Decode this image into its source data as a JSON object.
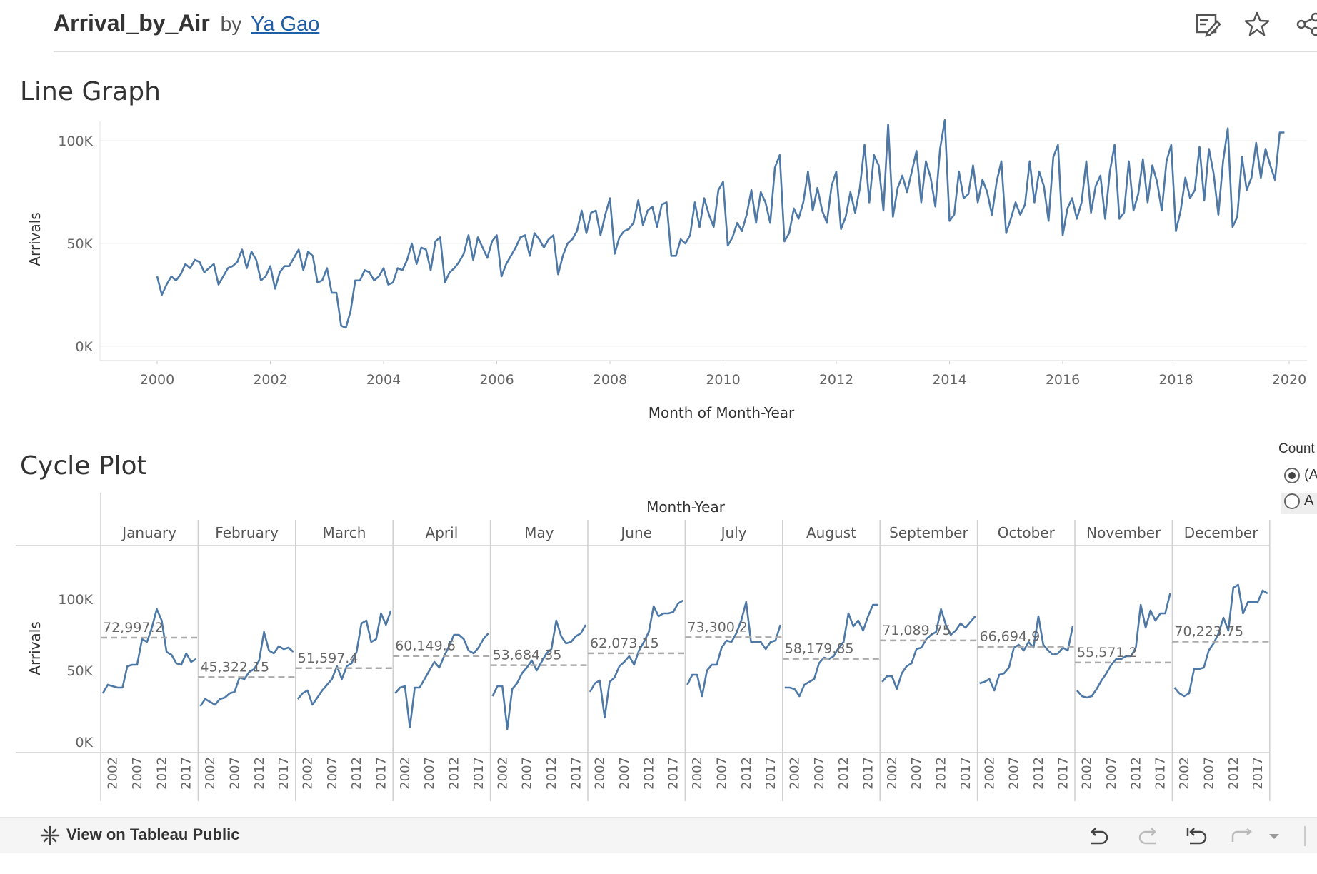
{
  "header": {
    "title": "Arrival_by_Air",
    "by": "by",
    "author": "Ya Gao",
    "icons": [
      "edit-icon",
      "star-icon",
      "share-icon"
    ]
  },
  "filter": {
    "title": "Count",
    "options": [
      {
        "label": "(All)",
        "selected": true
      },
      {
        "label": "A",
        "selected": false
      }
    ]
  },
  "footer": {
    "view_label": "View on Tableau Public",
    "icons": [
      "undo-icon",
      "redo-icon",
      "revert-icon",
      "refresh-icon",
      "dropdown-icon"
    ]
  },
  "chart_data": [
    {
      "type": "line",
      "title": "Line Graph",
      "xlabel": "Month of Month-Year",
      "ylabel": "Arrivals",
      "xlim": [
        1999,
        2020
      ],
      "ylim": [
        0,
        115000
      ],
      "x_ticks": [
        2000,
        2002,
        2004,
        2006,
        2008,
        2010,
        2012,
        2014,
        2016,
        2018,
        2020
      ],
      "y_ticks": [
        {
          "value": 0,
          "label": "0K"
        },
        {
          "value": 50000,
          "label": "50K"
        },
        {
          "value": 100000,
          "label": "100K"
        }
      ],
      "x_start": "2000-01",
      "x_end": "2019-12",
      "grid": true,
      "color": "#4e79a7",
      "values": [
        34000,
        25000,
        30000,
        34000,
        32000,
        35000,
        40000,
        38000,
        42000,
        41000,
        36000,
        38000,
        40000,
        30000,
        34000,
        38000,
        39000,
        41000,
        47000,
        38000,
        46000,
        42000,
        32000,
        34000,
        39000,
        28000,
        36000,
        39000,
        39000,
        43000,
        47000,
        37000,
        46000,
        44000,
        31000,
        32000,
        38000,
        26000,
        26000,
        10000,
        9000,
        17000,
        32000,
        32000,
        37000,
        36000,
        32000,
        34000,
        38000,
        30000,
        31000,
        38000,
        37000,
        42000,
        50000,
        40000,
        48000,
        47000,
        37000,
        51000,
        53000,
        31000,
        36000,
        38000,
        41000,
        45000,
        54000,
        42000,
        53000,
        48000,
        43000,
        51000,
        54000,
        34000,
        40000,
        44000,
        48000,
        53000,
        54000,
        44000,
        55000,
        52000,
        48000,
        52000,
        54000,
        35000,
        44000,
        50000,
        52000,
        56000,
        66000,
        55000,
        65000,
        66000,
        54000,
        64000,
        72000,
        45000,
        53000,
        56000,
        57000,
        60000,
        71000,
        59000,
        66000,
        68000,
        58000,
        69000,
        70000,
        44000,
        44000,
        52000,
        50000,
        54000,
        70000,
        58000,
        72000,
        64000,
        58000,
        76000,
        80000,
        49000,
        53000,
        60000,
        56000,
        64000,
        76000,
        60000,
        75000,
        70000,
        60000,
        87000,
        93000,
        51000,
        55000,
        67000,
        62000,
        70000,
        85000,
        66000,
        77000,
        66000,
        60000,
        78000,
        85000,
        57000,
        63000,
        75000,
        65000,
        77000,
        98000,
        70000,
        93000,
        88000,
        66000,
        108000,
        63000,
        77000,
        83000,
        75000,
        85000,
        95000,
        70000,
        90000,
        82000,
        68000,
        96000,
        110000,
        61000,
        64000,
        85000,
        72000,
        74000,
        88000,
        70000,
        81000,
        75000,
        64000,
        80000,
        90000,
        55000,
        62000,
        70000,
        64000,
        69000,
        90000,
        70000,
        85000,
        78000,
        61000,
        92000,
        98000,
        54000,
        67000,
        72000,
        62000,
        70000,
        90000,
        65000,
        78000,
        83000,
        62000,
        85000,
        98000,
        62000,
        65000,
        90000,
        66000,
        74000,
        91000,
        70000,
        88000,
        80000,
        66000,
        90000,
        98000,
        56000,
        66000,
        82000,
        72000,
        76000,
        97000,
        71000,
        96000,
        84000,
        64000,
        90000,
        106000,
        58000,
        63000,
        92000,
        76000,
        82000,
        99000,
        82000,
        96000,
        88000,
        81000,
        104000,
        104000
      ]
    },
    {
      "type": "line",
      "title": "Cycle Plot",
      "column_header": "Month-Year",
      "ylabel": "Arrivals",
      "ylim": [
        0,
        115000
      ],
      "y_ticks": [
        {
          "value": 0,
          "label": "0K"
        },
        {
          "value": 50000,
          "label": "50K"
        },
        {
          "value": 100000,
          "label": "100K"
        }
      ],
      "x_tick_labels": [
        "2002",
        "2007",
        "2012",
        "2017"
      ],
      "color": "#4e79a7",
      "reference_line_color": "#aaaaaa",
      "panels": [
        {
          "month": "January",
          "average": 72997.2,
          "average_label": "72,997.2"
        },
        {
          "month": "February",
          "average": 45322.15,
          "average_label": "45,322.15"
        },
        {
          "month": "March",
          "average": 51597.4,
          "average_label": "51,597.4"
        },
        {
          "month": "April",
          "average": 60149.6,
          "average_label": "60,149.6"
        },
        {
          "month": "May",
          "average": 53684.35,
          "average_label": "53,684.35"
        },
        {
          "month": "June",
          "average": 62073.15,
          "average_label": "62,073.15"
        },
        {
          "month": "July",
          "average": 73300.2,
          "average_label": "73,300.2"
        },
        {
          "month": "August",
          "average": 58179.85,
          "average_label": "58,179.85"
        },
        {
          "month": "September",
          "average": 71089.75,
          "average_label": "71,089.75"
        },
        {
          "month": "October",
          "average": 66694.9,
          "average_label": "66,694.9"
        },
        {
          "month": "November",
          "average": 55571.2,
          "average_label": "55,571.2"
        },
        {
          "month": "December",
          "average": 70223.75,
          "average_label": "70,223.75"
        }
      ]
    }
  ]
}
